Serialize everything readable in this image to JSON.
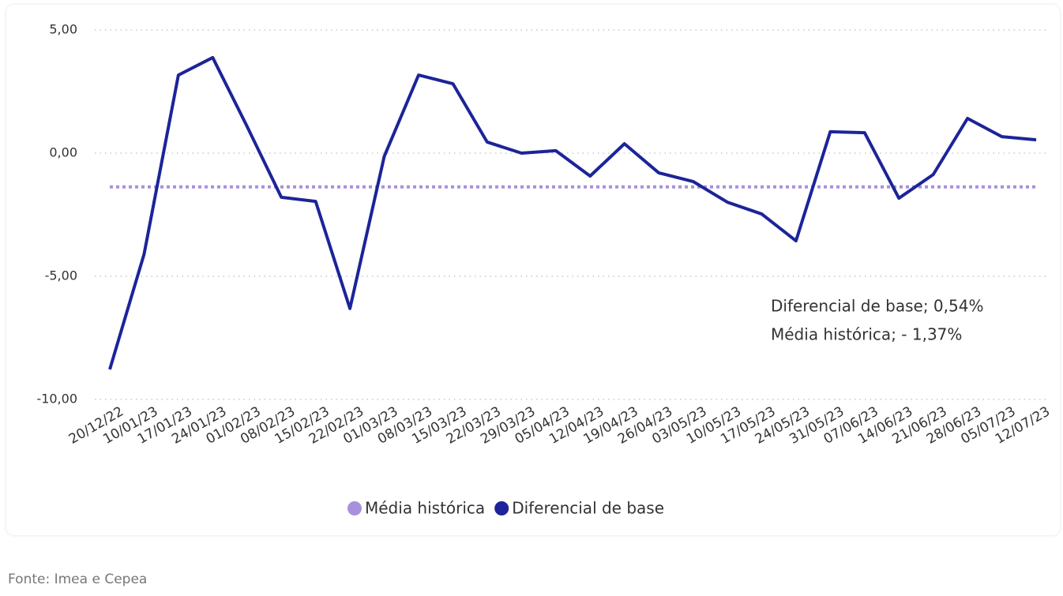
{
  "chart_data": {
    "type": "line",
    "categories": [
      "20/12/22",
      "10/01/23",
      "17/01/23",
      "24/01/23",
      "01/02/23",
      "08/02/23",
      "15/02/23",
      "22/02/23",
      "01/03/23",
      "08/03/23",
      "15/03/23",
      "22/03/23",
      "29/03/23",
      "05/04/23",
      "12/04/23",
      "19/04/23",
      "26/04/23",
      "03/05/23",
      "10/05/23",
      "17/05/23",
      "24/05/23",
      "31/05/23",
      "07/06/23",
      "14/06/23",
      "21/06/23",
      "28/06/23",
      "05/07/23",
      "12/07/23"
    ],
    "series": [
      {
        "name": "Média histórica",
        "color": "#a990dd",
        "value": -1.37
      },
      {
        "name": "Diferencial de base",
        "color": "#1c2499",
        "values": [
          -8.78,
          -4.1,
          3.17,
          3.88,
          1.09,
          -1.79,
          -1.96,
          -6.31,
          -0.13,
          3.17,
          2.82,
          0.45,
          0.0,
          0.1,
          -0.93,
          0.38,
          -0.8,
          -1.15,
          -1.99,
          -2.47,
          -3.56,
          0.87,
          0.83,
          -1.83,
          -0.87,
          1.41,
          0.67,
          0.54
        ]
      }
    ],
    "ylim": [
      -10,
      5
    ],
    "yticks": [
      {
        "value": -10,
        "label": "-10,00"
      },
      {
        "value": -5,
        "label": "-5,00"
      },
      {
        "value": 0,
        "label": "0,00"
      },
      {
        "value": 5,
        "label": "5,00"
      }
    ],
    "grid": true,
    "annotations": [
      "Diferencial de base; 0,54%",
      "Média histórica; - 1,37%"
    ]
  },
  "source": "Fonte: Imea e Cepea"
}
